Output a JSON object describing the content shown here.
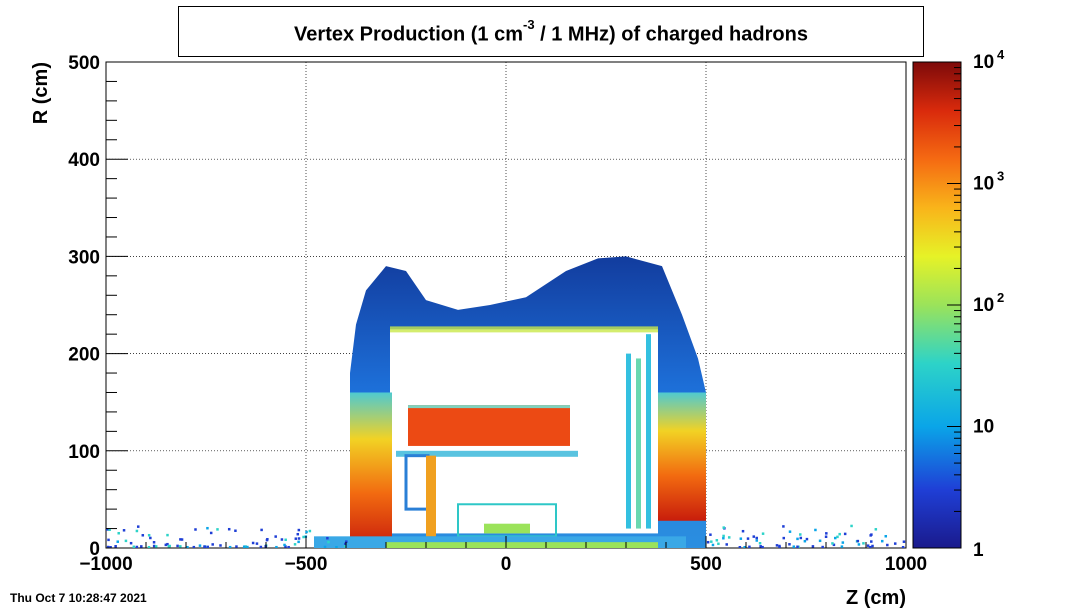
{
  "chart_data": {
    "type": "heatmap",
    "title_main": "Vertex Production (1 cm",
    "title_exp": "-3",
    "title_rest": " / 1 MHz) of   charged hadrons",
    "xlabel": "Z (cm)",
    "ylabel": "R (cm)",
    "xlim": [
      -1000,
      1000
    ],
    "ylim": [
      0,
      500
    ],
    "x_ticks": [
      -1000,
      -500,
      0,
      500,
      1000
    ],
    "x_tick_labels": [
      "−1000",
      "−500",
      "0",
      "500",
      "1000"
    ],
    "y_ticks": [
      0,
      100,
      200,
      300,
      400,
      500
    ],
    "y_tick_labels": [
      "0",
      "100",
      "200",
      "300",
      "400",
      "500"
    ],
    "grid": true,
    "z_scale": "log",
    "zlim": [
      1,
      10000
    ],
    "colorbar": {
      "position": "right",
      "labels": [
        {
          "value": 1,
          "text": "1"
        },
        {
          "value": 10,
          "text": "10"
        },
        {
          "value": 100,
          "text": "10",
          "exp": "2"
        },
        {
          "value": 1000,
          "text": "10",
          "exp": "3"
        },
        {
          "value": 10000,
          "text": "10",
          "exp": "4"
        }
      ]
    },
    "regions": [
      {
        "name": "outer-envelope",
        "z": [
          -390,
          500
        ],
        "r": [
          0,
          300
        ],
        "level": 15
      },
      {
        "name": "left-endcap-hot",
        "z": [
          -390,
          -280
        ],
        "r": [
          0,
          160
        ],
        "level": 2000
      },
      {
        "name": "right-endcap-hot",
        "z": [
          380,
          500
        ],
        "r": [
          30,
          160
        ],
        "level": 2000
      },
      {
        "name": "central-hot-block",
        "z": [
          -240,
          160
        ],
        "r": [
          105,
          145
        ],
        "level": 2500
      },
      {
        "name": "inner-cavity-empty",
        "z": [
          -290,
          380
        ],
        "r": [
          15,
          225
        ],
        "level": 0
      },
      {
        "name": "beamline-strip",
        "z": [
          -480,
          450
        ],
        "r": [
          0,
          15
        ],
        "level": 60
      }
    ]
  },
  "timestamp": "Thu Oct  7 10:28:47 2021"
}
